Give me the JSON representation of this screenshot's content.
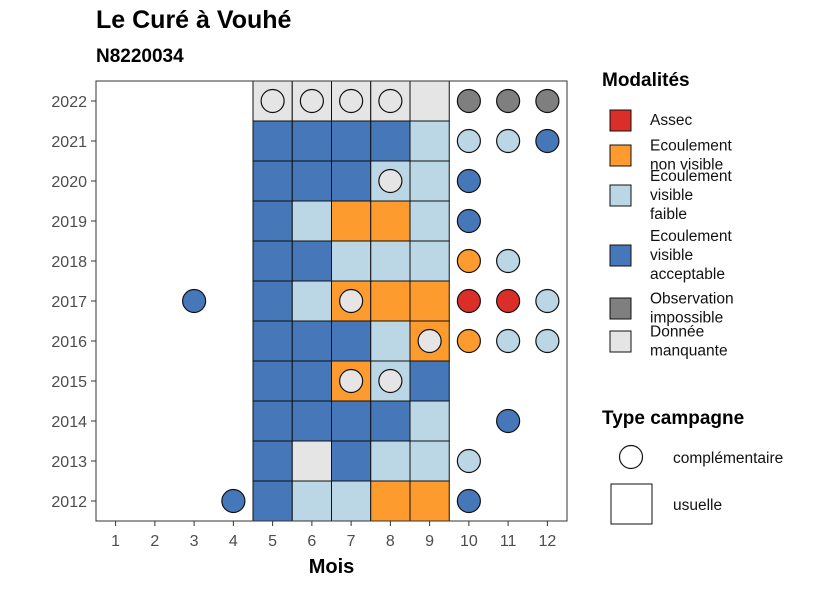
{
  "title": "Le Curé à Vouhé",
  "subtitle": "N8220034",
  "colors": {
    "Assec": "#DB2E28",
    "Ecoulement non visible": "#FD9B2F",
    "Ecoulement visible faible": "#BBD6E5",
    "Ecoulement visible acceptable": "#4677B8",
    "Observation impossible": "#7F7F7F",
    "Donnée manquante": "#E5E5E5"
  },
  "chart_data": {
    "type": "heatmap",
    "xlabel": "Mois",
    "ylabel": "",
    "x_ticks": [
      "1",
      "2",
      "3",
      "4",
      "5",
      "6",
      "7",
      "8",
      "9",
      "10",
      "11",
      "12"
    ],
    "y_ticks": [
      "2012",
      "2013",
      "2014",
      "2015",
      "2016",
      "2017",
      "2018",
      "2019",
      "2020",
      "2021",
      "2022"
    ],
    "grid": false,
    "legend_placement": "right",
    "legend": {
      "modalites_title": "Modalités",
      "modalites": [
        {
          "key": "Assec",
          "lines": [
            "Assec"
          ]
        },
        {
          "key": "Ecoulement non visible",
          "lines": [
            "Ecoulement",
            "non visible"
          ]
        },
        {
          "key": "Ecoulement visible faible",
          "lines": [
            "Ecoulement",
            "visible",
            "faible"
          ]
        },
        {
          "key": "Ecoulement visible acceptable",
          "lines": [
            "Ecoulement",
            "visible",
            "acceptable"
          ]
        },
        {
          "key": "Observation impossible",
          "lines": [
            "Observation",
            "impossible"
          ]
        },
        {
          "key": "Donnée manquante",
          "lines": [
            "Donnée",
            "manquante"
          ]
        }
      ],
      "campagne_title": "Type campagne",
      "campagne": [
        "complémentaire",
        "usuelle"
      ]
    },
    "usuelle": [
      {
        "year": 2022,
        "month": 5,
        "modalite": "Donnée manquante"
      },
      {
        "year": 2022,
        "month": 6,
        "modalite": "Donnée manquante"
      },
      {
        "year": 2022,
        "month": 7,
        "modalite": "Donnée manquante"
      },
      {
        "year": 2022,
        "month": 8,
        "modalite": "Donnée manquante"
      },
      {
        "year": 2022,
        "month": 9,
        "modalite": "Donnée manquante"
      },
      {
        "year": 2021,
        "month": 5,
        "modalite": "Ecoulement visible acceptable"
      },
      {
        "year": 2021,
        "month": 6,
        "modalite": "Ecoulement visible acceptable"
      },
      {
        "year": 2021,
        "month": 7,
        "modalite": "Ecoulement visible acceptable"
      },
      {
        "year": 2021,
        "month": 8,
        "modalite": "Ecoulement visible acceptable"
      },
      {
        "year": 2021,
        "month": 9,
        "modalite": "Ecoulement visible faible"
      },
      {
        "year": 2020,
        "month": 5,
        "modalite": "Ecoulement visible acceptable"
      },
      {
        "year": 2020,
        "month": 6,
        "modalite": "Ecoulement visible acceptable"
      },
      {
        "year": 2020,
        "month": 7,
        "modalite": "Ecoulement visible acceptable"
      },
      {
        "year": 2020,
        "month": 8,
        "modalite": "Ecoulement visible faible"
      },
      {
        "year": 2020,
        "month": 9,
        "modalite": "Ecoulement visible faible"
      },
      {
        "year": 2019,
        "month": 5,
        "modalite": "Ecoulement visible acceptable"
      },
      {
        "year": 2019,
        "month": 6,
        "modalite": "Ecoulement visible faible"
      },
      {
        "year": 2019,
        "month": 7,
        "modalite": "Ecoulement non visible"
      },
      {
        "year": 2019,
        "month": 8,
        "modalite": "Ecoulement non visible"
      },
      {
        "year": 2019,
        "month": 9,
        "modalite": "Ecoulement visible faible"
      },
      {
        "year": 2018,
        "month": 5,
        "modalite": "Ecoulement visible acceptable"
      },
      {
        "year": 2018,
        "month": 6,
        "modalite": "Ecoulement visible acceptable"
      },
      {
        "year": 2018,
        "month": 7,
        "modalite": "Ecoulement visible faible"
      },
      {
        "year": 2018,
        "month": 8,
        "modalite": "Ecoulement visible faible"
      },
      {
        "year": 2018,
        "month": 9,
        "modalite": "Ecoulement visible faible"
      },
      {
        "year": 2017,
        "month": 5,
        "modalite": "Ecoulement visible acceptable"
      },
      {
        "year": 2017,
        "month": 6,
        "modalite": "Ecoulement visible faible"
      },
      {
        "year": 2017,
        "month": 7,
        "modalite": "Ecoulement non visible"
      },
      {
        "year": 2017,
        "month": 8,
        "modalite": "Ecoulement non visible"
      },
      {
        "year": 2017,
        "month": 9,
        "modalite": "Ecoulement non visible"
      },
      {
        "year": 2016,
        "month": 5,
        "modalite": "Ecoulement visible acceptable"
      },
      {
        "year": 2016,
        "month": 6,
        "modalite": "Ecoulement visible acceptable"
      },
      {
        "year": 2016,
        "month": 7,
        "modalite": "Ecoulement visible acceptable"
      },
      {
        "year": 2016,
        "month": 8,
        "modalite": "Ecoulement visible faible"
      },
      {
        "year": 2016,
        "month": 9,
        "modalite": "Ecoulement non visible"
      },
      {
        "year": 2015,
        "month": 5,
        "modalite": "Ecoulement visible acceptable"
      },
      {
        "year": 2015,
        "month": 6,
        "modalite": "Ecoulement visible acceptable"
      },
      {
        "year": 2015,
        "month": 7,
        "modalite": "Ecoulement non visible"
      },
      {
        "year": 2015,
        "month": 8,
        "modalite": "Ecoulement visible faible"
      },
      {
        "year": 2015,
        "month": 9,
        "modalite": "Ecoulement visible acceptable"
      },
      {
        "year": 2014,
        "month": 5,
        "modalite": "Ecoulement visible acceptable"
      },
      {
        "year": 2014,
        "month": 6,
        "modalite": "Ecoulement visible acceptable"
      },
      {
        "year": 2014,
        "month": 7,
        "modalite": "Ecoulement visible acceptable"
      },
      {
        "year": 2014,
        "month": 8,
        "modalite": "Ecoulement visible acceptable"
      },
      {
        "year": 2014,
        "month": 9,
        "modalite": "Ecoulement visible faible"
      },
      {
        "year": 2013,
        "month": 5,
        "modalite": "Ecoulement visible acceptable"
      },
      {
        "year": 2013,
        "month": 6,
        "modalite": "Donnée manquante"
      },
      {
        "year": 2013,
        "month": 7,
        "modalite": "Ecoulement visible acceptable"
      },
      {
        "year": 2013,
        "month": 8,
        "modalite": "Ecoulement visible faible"
      },
      {
        "year": 2013,
        "month": 9,
        "modalite": "Ecoulement visible faible"
      },
      {
        "year": 2012,
        "month": 5,
        "modalite": "Ecoulement visible acceptable"
      },
      {
        "year": 2012,
        "month": 6,
        "modalite": "Ecoulement visible faible"
      },
      {
        "year": 2012,
        "month": 7,
        "modalite": "Ecoulement visible faible"
      },
      {
        "year": 2012,
        "month": 8,
        "modalite": "Ecoulement non visible"
      },
      {
        "year": 2012,
        "month": 9,
        "modalite": "Ecoulement non visible"
      }
    ],
    "complementaire": [
      {
        "year": 2022,
        "month": 5,
        "modalite": "Donnée manquante"
      },
      {
        "year": 2022,
        "month": 6,
        "modalite": "Donnée manquante"
      },
      {
        "year": 2022,
        "month": 7,
        "modalite": "Donnée manquante"
      },
      {
        "year": 2022,
        "month": 8,
        "modalite": "Donnée manquante"
      },
      {
        "year": 2022,
        "month": 10,
        "modalite": "Observation impossible"
      },
      {
        "year": 2022,
        "month": 11,
        "modalite": "Observation impossible"
      },
      {
        "year": 2022,
        "month": 12,
        "modalite": "Observation impossible"
      },
      {
        "year": 2021,
        "month": 10,
        "modalite": "Ecoulement visible faible"
      },
      {
        "year": 2021,
        "month": 11,
        "modalite": "Ecoulement visible faible"
      },
      {
        "year": 2021,
        "month": 12,
        "modalite": "Ecoulement visible acceptable"
      },
      {
        "year": 2020,
        "month": 8,
        "modalite": "Donnée manquante"
      },
      {
        "year": 2020,
        "month": 10,
        "modalite": "Ecoulement visible acceptable"
      },
      {
        "year": 2019,
        "month": 10,
        "modalite": "Ecoulement visible acceptable"
      },
      {
        "year": 2018,
        "month": 10,
        "modalite": "Ecoulement non visible"
      },
      {
        "year": 2018,
        "month": 11,
        "modalite": "Ecoulement visible faible"
      },
      {
        "year": 2017,
        "month": 3,
        "modalite": "Ecoulement visible acceptable"
      },
      {
        "year": 2017,
        "month": 7,
        "modalite": "Donnée manquante"
      },
      {
        "year": 2017,
        "month": 10,
        "modalite": "Assec"
      },
      {
        "year": 2017,
        "month": 11,
        "modalite": "Assec"
      },
      {
        "year": 2017,
        "month": 12,
        "modalite": "Ecoulement visible faible"
      },
      {
        "year": 2016,
        "month": 9,
        "modalite": "Donnée manquante"
      },
      {
        "year": 2016,
        "month": 10,
        "modalite": "Ecoulement non visible"
      },
      {
        "year": 2016,
        "month": 11,
        "modalite": "Ecoulement visible faible"
      },
      {
        "year": 2016,
        "month": 12,
        "modalite": "Ecoulement visible faible"
      },
      {
        "year": 2015,
        "month": 7,
        "modalite": "Donnée manquante"
      },
      {
        "year": 2015,
        "month": 8,
        "modalite": "Donnée manquante"
      },
      {
        "year": 2014,
        "month": 11,
        "modalite": "Ecoulement visible acceptable"
      },
      {
        "year": 2013,
        "month": 10,
        "modalite": "Ecoulement visible faible"
      },
      {
        "year": 2012,
        "month": 4,
        "modalite": "Ecoulement visible acceptable"
      },
      {
        "year": 2012,
        "month": 10,
        "modalite": "Ecoulement visible acceptable"
      }
    ]
  }
}
